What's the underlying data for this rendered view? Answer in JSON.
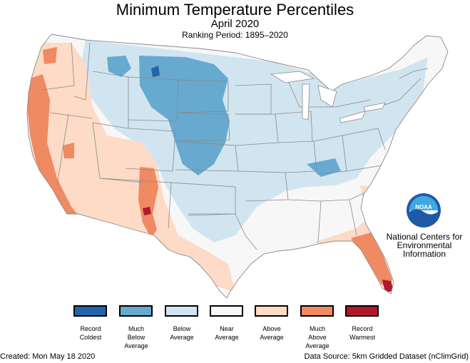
{
  "map": {
    "title": "Minimum Temperature Percentiles",
    "subtitle": "April 2020",
    "ranking_period": "Ranking Period: 1895–2020"
  },
  "legend": [
    {
      "lines": [
        "Record",
        "Coldest"
      ],
      "color": "#2166ac"
    },
    {
      "lines": [
        "Much",
        "Below",
        "Average"
      ],
      "color": "#67a9cf"
    },
    {
      "lines": [
        "Below",
        "Average"
      ],
      "color": "#d1e5f0"
    },
    {
      "lines": [
        "Near",
        "Average"
      ],
      "color": "#f7f7f7"
    },
    {
      "lines": [
        "Above",
        "Average"
      ],
      "color": "#fddbc7"
    },
    {
      "lines": [
        "Much",
        "Above",
        "Average"
      ],
      "color": "#ef8a62"
    },
    {
      "lines": [
        "Record",
        "Warmest"
      ],
      "color": "#b2182b"
    }
  ],
  "agency": {
    "logo_text": "NOAA",
    "lines": [
      "National Centers for",
      "Environmental",
      "Information"
    ]
  },
  "footer": {
    "created": "Created: Mon May 18 2020",
    "source": "Data Source: 5km Gridded Dataset (nClimGrid)"
  },
  "colors": {
    "state_border": "#8a8a8a",
    "noaa_blue": "#1f5aa6",
    "noaa_sky": "#3fa9e0"
  }
}
